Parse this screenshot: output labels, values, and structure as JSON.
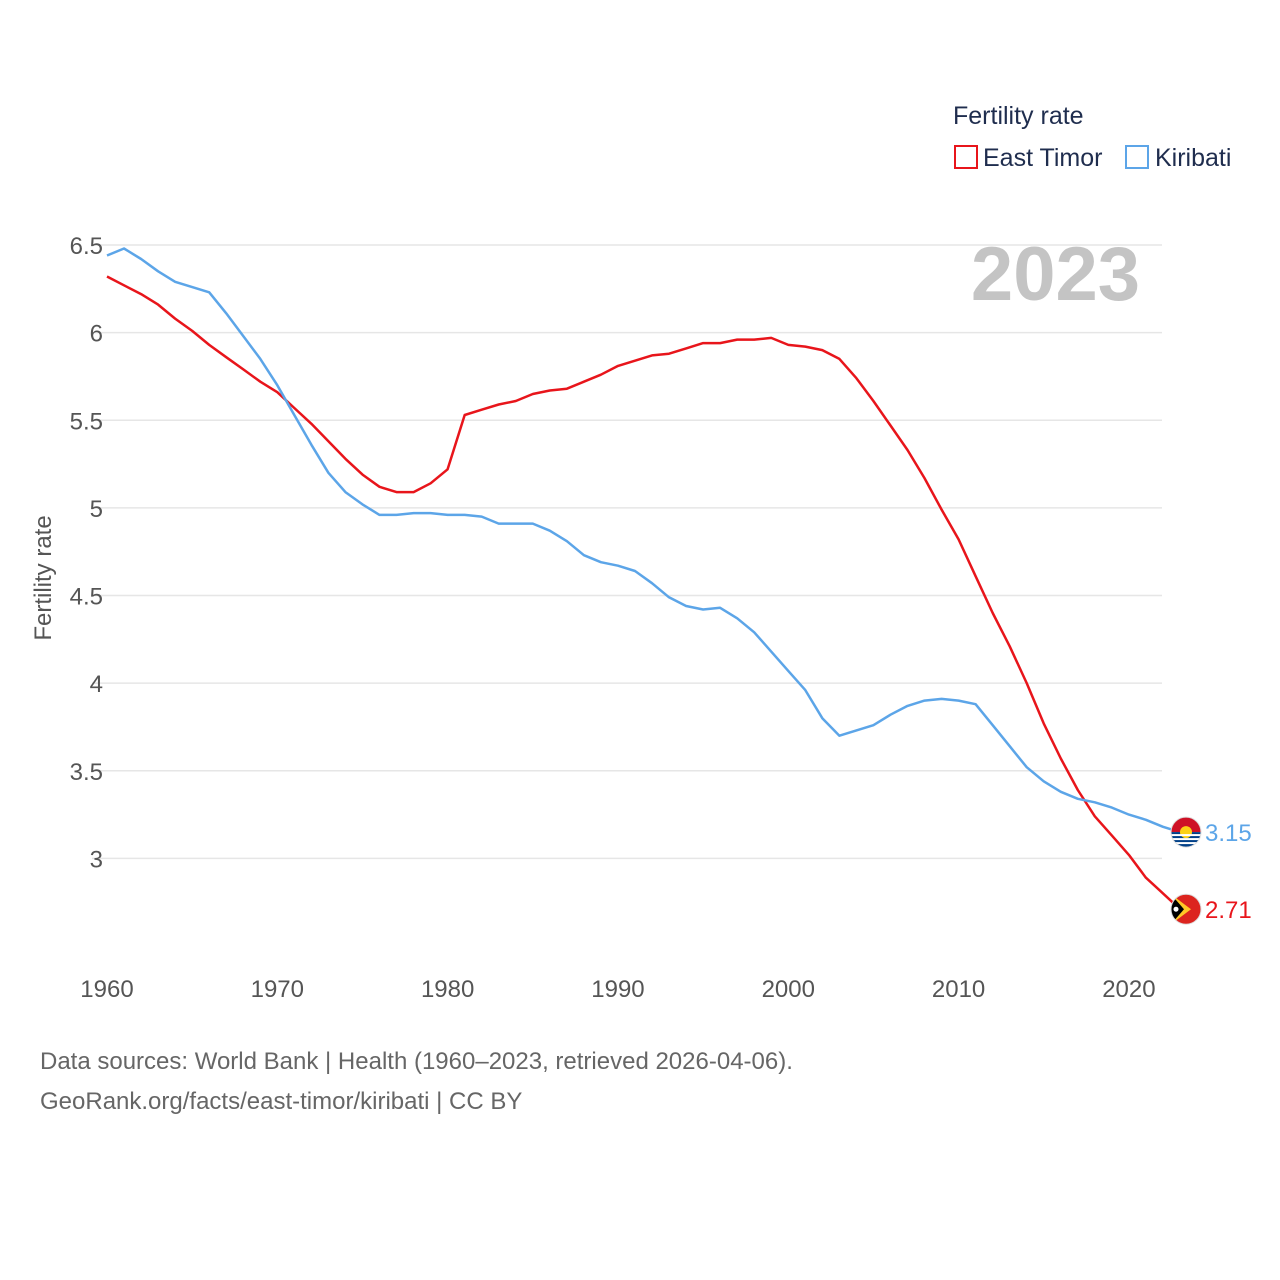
{
  "chart_data": {
    "type": "line",
    "title": "",
    "ylabel": "Fertility rate",
    "xlabel": "",
    "year_display": "2023",
    "legend_title": "Fertility rate",
    "legend_position": "top-right",
    "xlim": [
      1960,
      2023
    ],
    "ylim": [
      2.5,
      6.5
    ],
    "x_ticks": [
      1960,
      1970,
      1980,
      1990,
      2000,
      2010,
      2020
    ],
    "y_ticks": [
      3,
      3.5,
      4,
      4.5,
      5,
      5.5,
      6,
      6.5
    ],
    "x": [
      1960,
      1961,
      1962,
      1963,
      1964,
      1965,
      1966,
      1967,
      1968,
      1969,
      1970,
      1971,
      1972,
      1973,
      1974,
      1975,
      1976,
      1977,
      1978,
      1979,
      1980,
      1981,
      1982,
      1983,
      1984,
      1985,
      1986,
      1987,
      1988,
      1989,
      1990,
      1991,
      1992,
      1993,
      1994,
      1995,
      1996,
      1997,
      1998,
      1999,
      2000,
      2001,
      2002,
      2003,
      2004,
      2005,
      2006,
      2007,
      2008,
      2009,
      2010,
      2011,
      2012,
      2013,
      2014,
      2015,
      2016,
      2017,
      2018,
      2019,
      2020,
      2021,
      2022,
      2023
    ],
    "series": [
      {
        "name": "East Timor",
        "color": "#e8151b",
        "end_label": "2.71",
        "flag": "east-timor-flag-icon",
        "values": [
          6.32,
          6.27,
          6.22,
          6.16,
          6.08,
          6.01,
          5.93,
          5.86,
          5.79,
          5.72,
          5.66,
          5.57,
          5.48,
          5.38,
          5.28,
          5.19,
          5.12,
          5.09,
          5.09,
          5.14,
          5.22,
          5.53,
          5.56,
          5.59,
          5.61,
          5.65,
          5.67,
          5.68,
          5.72,
          5.76,
          5.81,
          5.84,
          5.87,
          5.88,
          5.91,
          5.94,
          5.94,
          5.96,
          5.96,
          5.97,
          5.93,
          5.92,
          5.9,
          5.85,
          5.74,
          5.61,
          5.47,
          5.33,
          5.17,
          4.99,
          4.82,
          4.61,
          4.4,
          4.21,
          4.0,
          3.77,
          3.57,
          3.39,
          3.24,
          3.13,
          3.02,
          2.89,
          2.8,
          2.71
        ]
      },
      {
        "name": "Kiribati",
        "color": "#5ca5e8",
        "end_label": "3.15",
        "flag": "kiribati-flag-icon",
        "values": [
          6.44,
          6.48,
          6.42,
          6.35,
          6.29,
          6.26,
          6.23,
          6.11,
          5.98,
          5.85,
          5.7,
          5.53,
          5.36,
          5.2,
          5.09,
          5.02,
          4.96,
          4.96,
          4.97,
          4.97,
          4.96,
          4.96,
          4.95,
          4.91,
          4.91,
          4.91,
          4.87,
          4.81,
          4.73,
          4.69,
          4.67,
          4.64,
          4.57,
          4.49,
          4.44,
          4.42,
          4.43,
          4.37,
          4.29,
          4.18,
          4.07,
          3.96,
          3.8,
          3.7,
          3.73,
          3.76,
          3.82,
          3.87,
          3.9,
          3.91,
          3.9,
          3.88,
          3.76,
          3.64,
          3.52,
          3.44,
          3.38,
          3.34,
          3.32,
          3.29,
          3.25,
          3.22,
          3.18,
          3.15
        ]
      }
    ]
  },
  "footer": {
    "source_line": "Data sources: World Bank | Health (1960–2023, retrieved 2026-04-06).",
    "url_line": "GeoRank.org/facts/east-timor/kiribati | CC BY"
  }
}
